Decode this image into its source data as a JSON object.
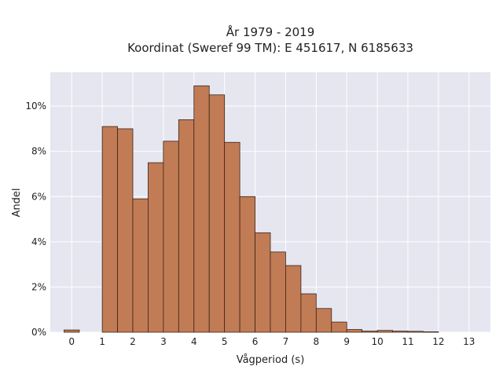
{
  "chart_data": {
    "type": "bar",
    "title_lines": [
      "År 1979 - 2019",
      "Koordinat (Sweref 99 TM): E 451617, N 6185633"
    ],
    "xlabel": "Vågperiod (s)",
    "ylabel": "Andel",
    "xlim": [
      -0.7,
      13.7
    ],
    "ylim": [
      0,
      11.5
    ],
    "x_ticks": [
      0,
      1,
      2,
      3,
      4,
      5,
      6,
      7,
      8,
      9,
      10,
      11,
      12,
      13
    ],
    "x_tick_labels": [
      "0",
      "1",
      "2",
      "3",
      "4",
      "5",
      "6",
      "7",
      "8",
      "9",
      "10",
      "11",
      "12",
      "13"
    ],
    "y_ticks": [
      0,
      2,
      4,
      6,
      8,
      10
    ],
    "y_tick_labels": [
      "0%",
      "2%",
      "4%",
      "6%",
      "8%",
      "10%"
    ],
    "grid": true,
    "bin_width": 0.5,
    "bin_starts": [
      -0.25,
      1.0,
      1.5,
      2.0,
      2.5,
      3.0,
      3.5,
      4.0,
      4.5,
      5.0,
      5.5,
      6.0,
      6.5,
      7.0,
      7.5,
      8.0,
      8.5,
      9.0,
      9.5,
      10.0,
      10.5,
      11.0,
      11.5
    ],
    "values": [
      0.1,
      9.1,
      9.0,
      5.9,
      7.5,
      8.45,
      9.4,
      10.9,
      10.5,
      8.4,
      6.0,
      4.4,
      3.55,
      2.95,
      1.7,
      1.05,
      0.45,
      0.12,
      0.05,
      0.08,
      0.05,
      0.04,
      0.02
    ],
    "colors": {
      "bar_fill": "#c17c55",
      "bar_edge": "#3b2418",
      "plot_bg": "#e5e6f0",
      "grid": "#ffffff"
    }
  }
}
